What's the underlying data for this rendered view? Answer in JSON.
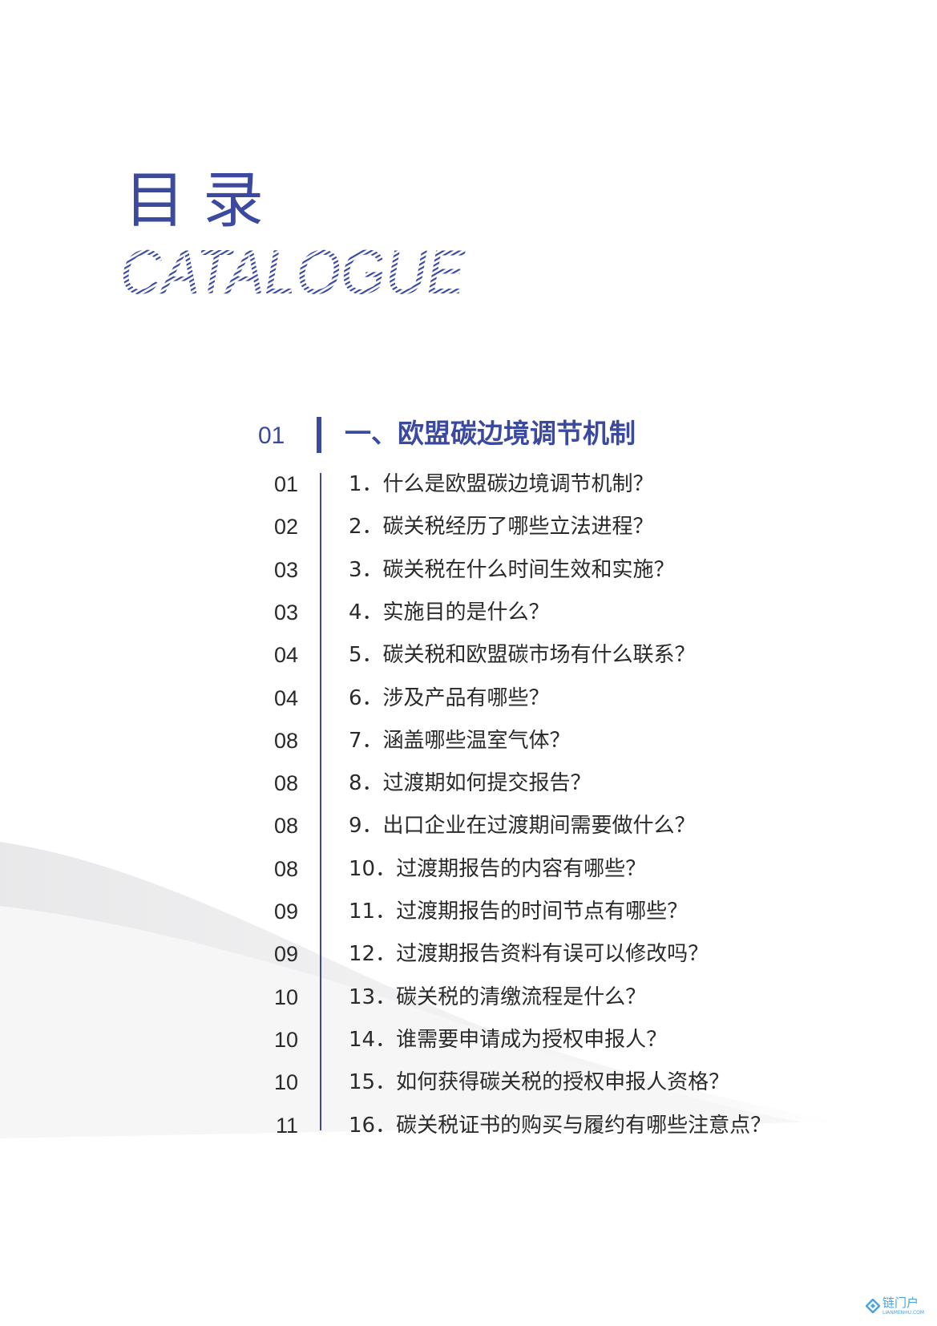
{
  "page": {
    "title": "目录",
    "subtitle": "CATALOGUE",
    "accent_color": "#3b4a9e"
  },
  "section": {
    "number": "01",
    "title": "一、欧盟碳边境调节机制"
  },
  "items": [
    {
      "page": "01",
      "label": "1．什么是欧盟碳边境调节机制？"
    },
    {
      "page": "02",
      "label": "2．碳关税经历了哪些立法进程？"
    },
    {
      "page": "03",
      "label": "3．碳关税在什么时间生效和实施？"
    },
    {
      "page": "03",
      "label": "4．实施目的是什么？"
    },
    {
      "page": "04",
      "label": "5．碳关税和欧盟碳市场有什么联系？"
    },
    {
      "page": "04",
      "label": "6．涉及产品有哪些？"
    },
    {
      "page": "08",
      "label": "7．涵盖哪些温室气体？"
    },
    {
      "page": "08",
      "label": "8．过渡期如何提交报告？"
    },
    {
      "page": "08",
      "label": "9．出口企业在过渡期间需要做什么？"
    },
    {
      "page": "08",
      "label": "10．过渡期报告的内容有哪些？"
    },
    {
      "page": "09",
      "label": "11．过渡期报告的时间节点有哪些？"
    },
    {
      "page": "09",
      "label": "12．过渡期报告资料有误可以修改吗？"
    },
    {
      "page": "10",
      "label": "13．碳关税的清缴流程是什么？"
    },
    {
      "page": "10",
      "label": "14．谁需要申请成为授权申报人？"
    },
    {
      "page": "10",
      "label": "15．如何获得碳关税的授权申报人资格？"
    },
    {
      "page": "11",
      "label": "16．碳关税证书的购买与履约有哪些注意点？"
    }
  ],
  "watermark": {
    "name": "链门户",
    "domain": "LIANMENHU.COM",
    "color": "#4aa3e0"
  }
}
